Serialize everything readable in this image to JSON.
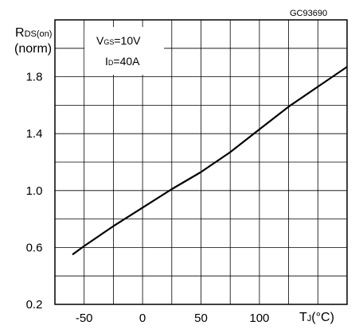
{
  "figure_id": "GC93690",
  "chart_data": {
    "type": "line",
    "ylabel": {
      "main": "R",
      "sub": "DS(on)",
      "unit": "(norm)"
    },
    "xlabel": {
      "main": "T",
      "sub": "J",
      "unit": "(°C)"
    },
    "xlim": [
      -75,
      175
    ],
    "ylim": [
      0.2,
      2.2
    ],
    "x_grid_step": 25,
    "y_grid_step": 0.2,
    "grid": true,
    "x_ticks": [
      {
        "value": -50,
        "label": "-50"
      },
      {
        "value": 0,
        "label": "0"
      },
      {
        "value": 50,
        "label": "50"
      },
      {
        "value": 100,
        "label": "100"
      }
    ],
    "y_ticks": [
      {
        "value": 0.2,
        "label": "0.2"
      },
      {
        "value": 0.6,
        "label": "0.6"
      },
      {
        "value": 1.0,
        "label": "1.0"
      },
      {
        "value": 1.4,
        "label": "1.4"
      },
      {
        "value": 1.8,
        "label": "1.8"
      }
    ],
    "annotations": [
      {
        "main": "V",
        "sub": "GS",
        "rest": "=10V"
      },
      {
        "main": "I",
        "sub": "D",
        "rest": "=40A"
      }
    ],
    "series": [
      {
        "color": "#000000",
        "x": [
          -60,
          -50,
          -25,
          0,
          25,
          50,
          75,
          100,
          125,
          150,
          175
        ],
        "y": [
          0.55,
          0.61,
          0.75,
          0.88,
          1.01,
          1.13,
          1.27,
          1.43,
          1.59,
          1.73,
          1.87
        ]
      }
    ]
  }
}
